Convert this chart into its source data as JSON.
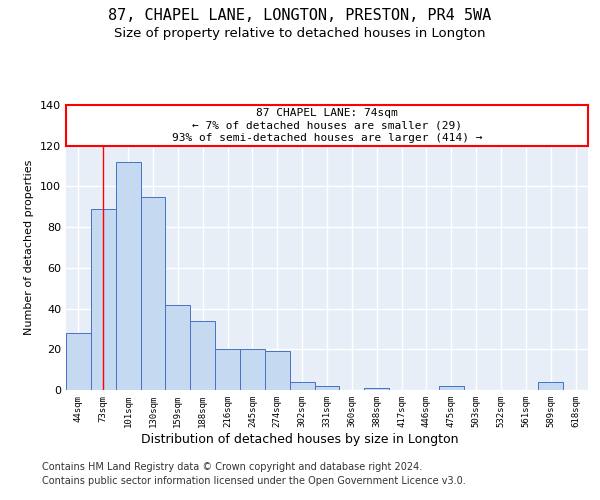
{
  "title_line1": "87, CHAPEL LANE, LONGTON, PRESTON, PR4 5WA",
  "title_line2": "Size of property relative to detached houses in Longton",
  "xlabel": "Distribution of detached houses by size in Longton",
  "ylabel": "Number of detached properties",
  "categories": [
    "44sqm",
    "73sqm",
    "101sqm",
    "130sqm",
    "159sqm",
    "188sqm",
    "216sqm",
    "245sqm",
    "274sqm",
    "302sqm",
    "331sqm",
    "360sqm",
    "388sqm",
    "417sqm",
    "446sqm",
    "475sqm",
    "503sqm",
    "532sqm",
    "561sqm",
    "589sqm",
    "618sqm"
  ],
  "values": [
    28,
    89,
    112,
    95,
    42,
    34,
    20,
    20,
    19,
    4,
    2,
    0,
    1,
    0,
    0,
    2,
    0,
    0,
    0,
    4,
    0
  ],
  "bar_color": "#c5d9f0",
  "bar_edge_color": "#4472c4",
  "background_color": "#e8eef8",
  "grid_color": "#ffffff",
  "fig_background": "#ffffff",
  "ylim": [
    0,
    140
  ],
  "yticks": [
    0,
    20,
    40,
    60,
    80,
    100,
    120,
    140
  ],
  "annotation_line1": "87 CHAPEL LANE: 74sqm",
  "annotation_line2": "← 7% of detached houses are smaller (29)",
  "annotation_line3": "93% of semi-detached houses are larger (414) →",
  "vline_x": 1,
  "footer_line1": "Contains HM Land Registry data © Crown copyright and database right 2024.",
  "footer_line2": "Contains public sector information licensed under the Open Government Licence v3.0.",
  "title_fontsize": 11,
  "subtitle_fontsize": 9.5,
  "annotation_fontsize": 8,
  "footer_fontsize": 7,
  "xlabel_fontsize": 9,
  "ylabel_fontsize": 8
}
